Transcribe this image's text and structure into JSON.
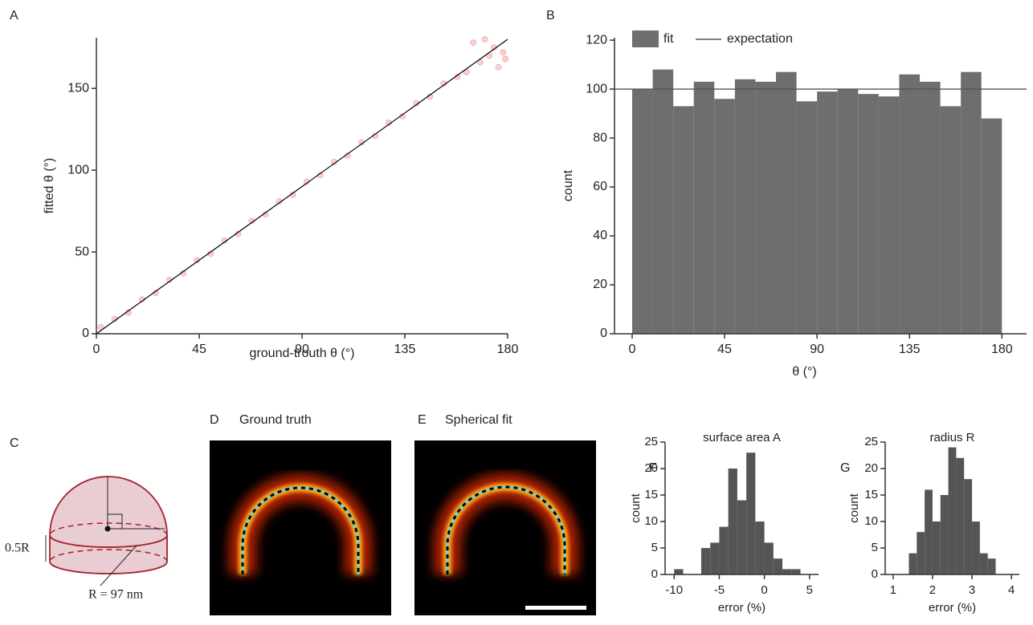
{
  "chart_data": [
    {
      "type": "scatter",
      "panel": "A",
      "xlabel": "ground-trouth θ (°)",
      "ylabel": "fitted θ (°)",
      "xlim": [
        0,
        180
      ],
      "ylim": [
        0,
        181
      ],
      "xticks": [
        0,
        45,
        90,
        135,
        180
      ],
      "yticks": [
        0,
        50,
        100,
        150
      ],
      "series": [
        {
          "color": "#f07a7a",
          "x": [
            2,
            8,
            14,
            20,
            26,
            32,
            38,
            44,
            50,
            56,
            62,
            68,
            74,
            80,
            86,
            92,
            98,
            104,
            110,
            116,
            122,
            128,
            134,
            140,
            146,
            152,
            158,
            162,
            165,
            168,
            170,
            172,
            174,
            176,
            178,
            179
          ],
          "values": [
            4,
            9,
            13,
            21,
            25,
            33,
            37,
            45,
            49,
            57,
            61,
            69,
            73,
            81,
            85,
            93,
            97,
            105,
            109,
            117,
            121,
            129,
            133,
            141,
            145,
            153,
            157,
            160,
            178,
            166,
            180,
            170,
            175,
            163,
            172,
            168
          ]
        }
      ],
      "fit_line": {
        "color": "#000000",
        "x": [
          0,
          180
        ],
        "values": [
          0,
          180
        ]
      }
    },
    {
      "type": "histogram",
      "panel": "B",
      "xlabel": "θ (°)",
      "ylabel": "count",
      "xlim": [
        -8.6,
        192
      ],
      "ylim": [
        0,
        121
      ],
      "xticks": [
        0,
        45,
        90,
        135,
        180
      ],
      "yticks": [
        0,
        20,
        40,
        60,
        80,
        100,
        120
      ],
      "bins": [
        0,
        10,
        20,
        30,
        40,
        50,
        60,
        70,
        80,
        90,
        100,
        110,
        120,
        130,
        140,
        150,
        160,
        170,
        180
      ],
      "series": [
        {
          "name": "fit",
          "color": "#6e6e6e",
          "values": [
            100,
            108,
            93,
            103,
            96,
            104,
            103,
            107,
            95,
            99,
            100,
            98,
            97,
            106,
            103,
            93,
            107,
            88
          ]
        }
      ],
      "expectation": {
        "name": "expectation",
        "color": "#555555",
        "value": 100
      }
    },
    {
      "type": "histogram",
      "panel": "F",
      "title": "surface area A",
      "xlabel": "error (%)",
      "ylabel": "count",
      "xlim": [
        -11,
        6
      ],
      "ylim": [
        0,
        25
      ],
      "xticks": [
        -10,
        -5,
        0,
        5
      ],
      "yticks": [
        0,
        5,
        10,
        15,
        20,
        25
      ],
      "bins": [
        -10,
        -9,
        -8,
        -7,
        -6,
        -5,
        -4,
        -3,
        -2,
        -1,
        0,
        1,
        2,
        3,
        4
      ],
      "series": [
        {
          "color": "#555555",
          "values": [
            1,
            0,
            0,
            5,
            6,
            9,
            20,
            14,
            23,
            10,
            6,
            3,
            1,
            1
          ]
        }
      ]
    },
    {
      "type": "histogram",
      "panel": "G",
      "title": "radius R",
      "xlabel": "error (%)",
      "ylabel": "count",
      "xlim": [
        0.8,
        4.2
      ],
      "ylim": [
        0,
        25
      ],
      "xticks": [
        1,
        2,
        3,
        4
      ],
      "yticks": [
        0,
        5,
        10,
        15,
        20,
        25
      ],
      "bins": [
        1.4,
        1.6,
        1.8,
        2.0,
        2.2,
        2.4,
        2.6,
        2.8,
        3.0,
        3.2,
        3.4,
        3.6
      ],
      "series": [
        {
          "color": "#555555",
          "values": [
            4,
            8,
            16,
            10,
            15,
            24,
            22,
            18,
            10,
            4,
            3
          ]
        }
      ]
    }
  ],
  "diagram": {
    "panel": "C",
    "height_label": "0.5R",
    "radius_label": "R = 97 nm"
  },
  "images": [
    {
      "panel": "D",
      "title": "Ground truth"
    },
    {
      "panel": "E",
      "title": "Spherical fit"
    }
  ]
}
